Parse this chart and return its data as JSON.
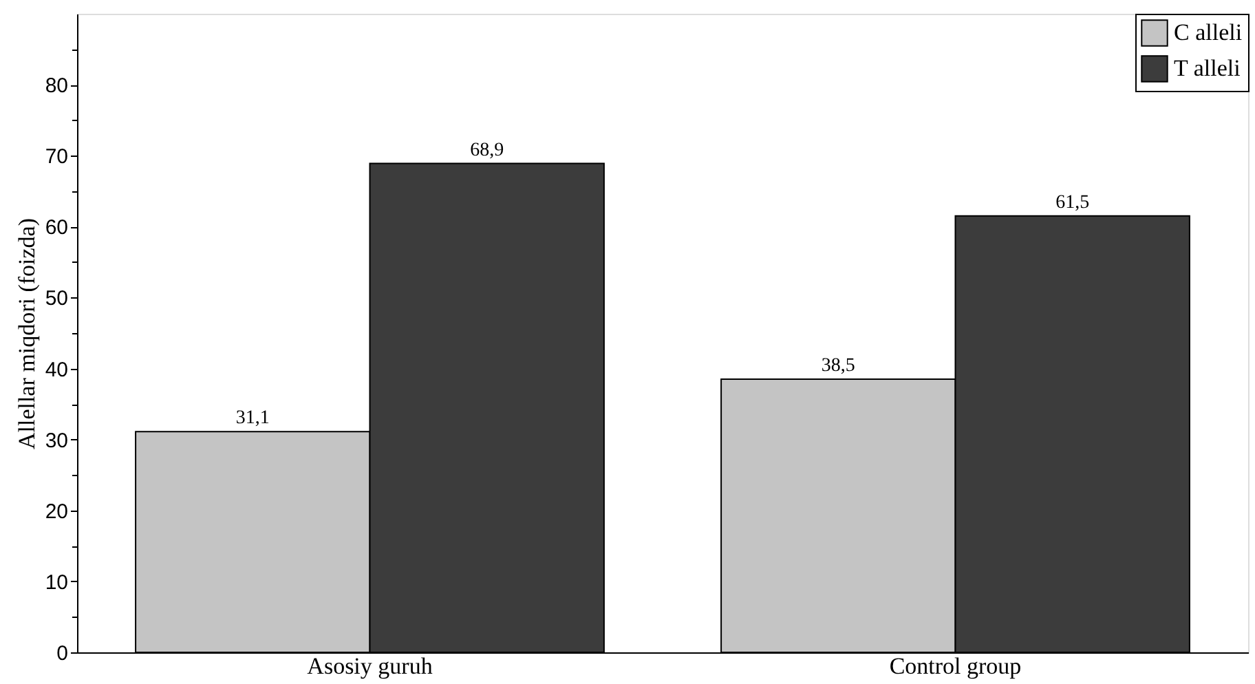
{
  "chart_data": {
    "type": "bar",
    "ylabel": "Allellar miqdori (foizda)",
    "categories": [
      "Asosiy guruh",
      "Control group"
    ],
    "series": [
      {
        "name": "C alleli",
        "color": "#c4c4c4",
        "values": [
          31.1,
          38.5
        ],
        "value_labels": [
          "31,1",
          "38,5"
        ]
      },
      {
        "name": "T alleli",
        "color": "#3c3c3c",
        "values": [
          68.9,
          61.5
        ],
        "value_labels": [
          "68,9",
          "61,5"
        ]
      }
    ],
    "ylim": [
      0,
      90
    ],
    "yticks": [
      0,
      {
        "value": 5,
        "label": null
      },
      10,
      {
        "value": 15,
        "label": null
      },
      20,
      {
        "value": 25,
        "label": null
      },
      30,
      {
        "value": 35,
        "label": null
      },
      40,
      {
        "value": 45,
        "label": null
      },
      50,
      {
        "value": 55,
        "label": null
      },
      60,
      {
        "value": 65,
        "label": null
      },
      70,
      {
        "value": 75,
        "label": null
      },
      80,
      {
        "value": 85,
        "label": null
      }
    ],
    "grid": false,
    "legend": "top right"
  }
}
